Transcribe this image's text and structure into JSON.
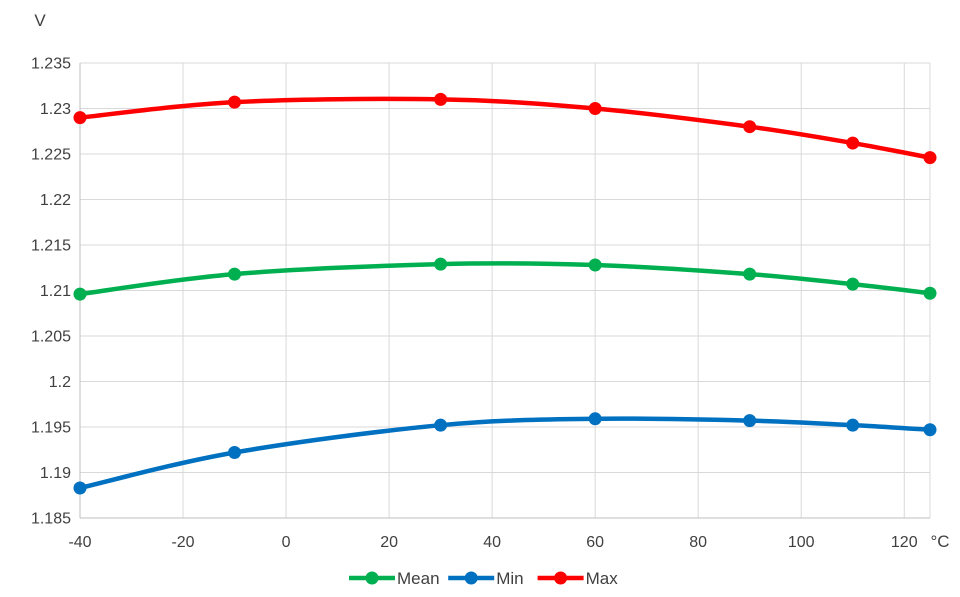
{
  "chart_data": {
    "type": "line",
    "title": "",
    "ylabel": "V",
    "xlabel": "°C",
    "xlim": [
      -40,
      125
    ],
    "ylim": [
      1.185,
      1.235
    ],
    "x_ticks": [
      -40,
      -20,
      0,
      20,
      40,
      60,
      80,
      100,
      120
    ],
    "x_tick_labels": [
      "-40",
      "-20",
      "0",
      "20",
      "40",
      "60",
      "80",
      "100",
      "120"
    ],
    "y_ticks": [
      1.185,
      1.19,
      1.195,
      1.2,
      1.205,
      1.21,
      1.215,
      1.22,
      1.225,
      1.23,
      1.235
    ],
    "y_tick_labels": [
      "1.185",
      "1.19",
      "1.195",
      "1.2",
      "1.205",
      "1.21",
      "1.215",
      "1.22",
      "1.225",
      "1.23",
      "1.235"
    ],
    "grid": true,
    "legend_position": "bottom",
    "x": [
      -40,
      -10,
      30,
      60,
      90,
      110,
      125
    ],
    "series": [
      {
        "name": "Mean",
        "color": "#00b050",
        "values": [
          1.2096,
          1.2118,
          1.2129,
          1.2128,
          1.2118,
          1.2107,
          1.2097
        ]
      },
      {
        "name": "Min",
        "color": "#0070c0",
        "values": [
          1.1883,
          1.1922,
          1.1952,
          1.1959,
          1.1957,
          1.1952,
          1.1947
        ]
      },
      {
        "name": "Max",
        "color": "#ff0000",
        "values": [
          1.229,
          1.2307,
          1.231,
          1.23,
          1.228,
          1.2262,
          1.2246
        ]
      }
    ]
  }
}
